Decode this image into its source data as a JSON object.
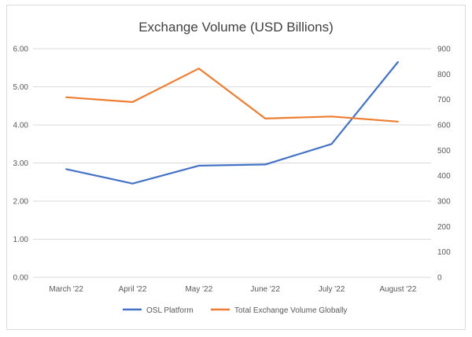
{
  "chart_data": {
    "type": "line",
    "title": "Exchange Volume (USD Billions)",
    "categories": [
      "March '22",
      "April '22",
      "May '22",
      "June '22",
      "July '22",
      "August '22"
    ],
    "axes": {
      "left": {
        "min": 0,
        "max": 6,
        "step": 1,
        "ticks": [
          "0.00",
          "1.00",
          "2.00",
          "3.00",
          "4.00",
          "5.00",
          "6.00"
        ]
      },
      "right": {
        "min": 0,
        "max": 900,
        "step": 100,
        "ticks": [
          "0",
          "100",
          "200",
          "300",
          "400",
          "500",
          "600",
          "700",
          "800",
          "900"
        ]
      }
    },
    "grid": true,
    "legend_position": "bottom",
    "series": [
      {
        "name": "OSL Platform",
        "axis": "left",
        "color": "#4472C4",
        "values": [
          2.84,
          2.46,
          2.93,
          2.96,
          3.5,
          5.65
        ]
      },
      {
        "name": "Total Exchange Volume Globally",
        "axis": "right",
        "color": "#ED7D31",
        "values": [
          709,
          690,
          822,
          625,
          633,
          613
        ]
      }
    ]
  }
}
